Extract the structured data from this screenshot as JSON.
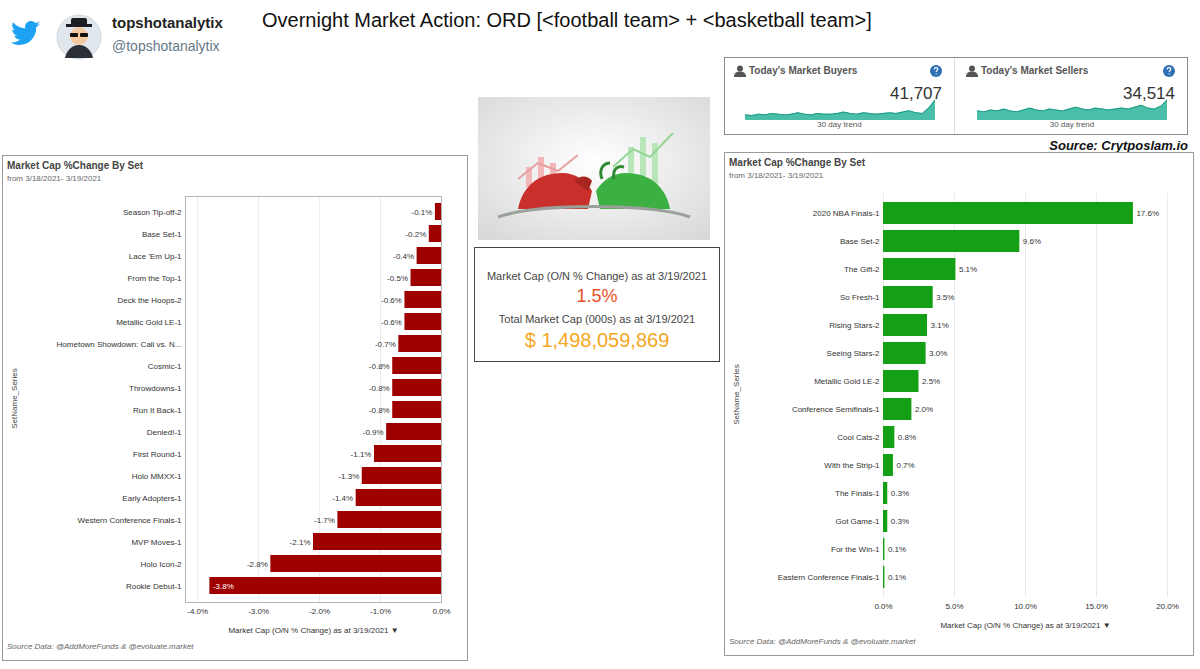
{
  "header": {
    "name": "topshotanalytix",
    "handle": "@topshotanalytix",
    "title": "Overnight Market Action: ORD [<football team> + <basketball team>]"
  },
  "market_stats": {
    "cards": [
      {
        "title": "Today's Market Buyers",
        "value": "41,707",
        "trend_label": "30 day trend",
        "trend": [
          8,
          7,
          9,
          8,
          10,
          9,
          8,
          9,
          11,
          9,
          8,
          10,
          9,
          9,
          10,
          12,
          10,
          9,
          11,
          10,
          9,
          10,
          11,
          10,
          12,
          14,
          11,
          10,
          18,
          30
        ]
      },
      {
        "title": "Today's Market Sellers",
        "value": "34,514",
        "trend_label": "30 day trend",
        "trend": [
          10,
          9,
          11,
          10,
          12,
          10,
          9,
          11,
          13,
          11,
          10,
          12,
          11,
          10,
          12,
          14,
          12,
          11,
          13,
          12,
          11,
          12,
          13,
          12,
          14,
          16,
          13,
          12,
          15,
          22
        ]
      }
    ],
    "source": "Source: Crytposlam.io"
  },
  "summary": {
    "change_label": "Market Cap (O/N % Change) as at 3/19/2021",
    "change": "1.5%",
    "total_label": "Total Market Cap (000s) as at 3/19/2021",
    "total": "$ 1,498,059,869"
  },
  "chart_data": [
    {
      "type": "bar",
      "orientation": "horizontal",
      "title": "Market Cap %Change By Set",
      "subtitle": "from 3/18/2021- 3/19/2021",
      "x_label": "Market Cap (O/N % Change) as at 3/19/2021 ▼",
      "y_label": "SetName_Series",
      "categories": [
        "Season Tip-off-2",
        "Base Set-1",
        "Lace 'Em Up-1",
        "From the Top-1",
        "Deck the Hoops-2",
        "Metallic Gold LE-1",
        "Hometown Showdown: Cali vs. N...",
        "Cosmic-1",
        "Throwdowns-1",
        "Run It Back-1",
        "Denied!-1",
        "First Round-1",
        "Holo MMXX-1",
        "Early Adopters-1",
        "Western Conference Finals-1",
        "MVP Moves-1",
        "Holo Icon-2",
        "Rookie Debut-1"
      ],
      "values": [
        -0.1,
        -0.2,
        -0.4,
        -0.5,
        -0.6,
        -0.6,
        -0.7,
        -0.8,
        -0.8,
        -0.8,
        -0.9,
        -1.1,
        -1.3,
        -1.4,
        -1.7,
        -2.1,
        -2.8,
        -3.8
      ],
      "value_labels": [
        "-0.1%",
        "-0.2%",
        "-0.4%",
        "-0.5%",
        "-0.6%",
        "-0.6%",
        "-0.7%",
        "-0.8%",
        "-0.8%",
        "-0.8%",
        "-0.9%",
        "-1.1%",
        "-1.3%",
        "-1.4%",
        "-1.7%",
        "-2.1%",
        "-2.8%",
        "-3.8%"
      ],
      "color": "#9e0000",
      "xlim": [
        -4.2,
        0
      ],
      "xticks": [
        {
          "value": -4,
          "label": "-4.0%"
        },
        {
          "value": -3,
          "label": "-3.0%"
        },
        {
          "value": -2,
          "label": "-2.0%"
        },
        {
          "value": -1,
          "label": "-1.0%"
        },
        {
          "value": 0,
          "label": "0.0%"
        }
      ],
      "grid": true,
      "data_labels": true,
      "caption": "Source Data: @AddMoreFunds & @evoluate.market"
    },
    {
      "type": "bar",
      "orientation": "horizontal",
      "title": "Market Cap %Change By Set",
      "subtitle": "from 3/18/2021- 3/19/2021",
      "x_label": "Market Cap (O/N % Change) as at 3/19/2021 ▼",
      "y_label": "SetName_Series",
      "categories": [
        "2020 NBA Finals-1",
        "Base Set-2",
        "The Gift-2",
        "So Fresh-1",
        "Rising Stars-2",
        "Seeing Stars-2",
        "Metallic Gold LE-2",
        "Conference Semifinals-1",
        "Cool Cats-2",
        "With the Strip-1",
        "The Finals-1",
        "Got Game-1",
        "For the Win-1",
        "Eastern Conference Finals-1"
      ],
      "values": [
        17.6,
        9.6,
        5.1,
        3.5,
        3.1,
        3.0,
        2.5,
        2.0,
        0.8,
        0.7,
        0.3,
        0.3,
        0.1,
        0.1
      ],
      "value_labels": [
        "17.6%",
        "9.6%",
        "5.1%",
        "3.5%",
        "3.1%",
        "3.0%",
        "2.5%",
        "2.0%",
        "0.8%",
        "0.7%",
        "0.3%",
        "0.3%",
        "0.1%",
        "0.1%"
      ],
      "color": "#14a014",
      "xlim": [
        0,
        20
      ],
      "xticks": [
        {
          "value": 0,
          "label": "0.0%"
        },
        {
          "value": 5,
          "label": "5.0%"
        },
        {
          "value": 10,
          "label": "10.0%"
        },
        {
          "value": 15,
          "label": "15.0%"
        },
        {
          "value": 20,
          "label": "20.0%"
        }
      ],
      "grid": true,
      "data_labels": true,
      "caption": "Source Data: @AddMoreFunds & @evoluate.market"
    }
  ]
}
